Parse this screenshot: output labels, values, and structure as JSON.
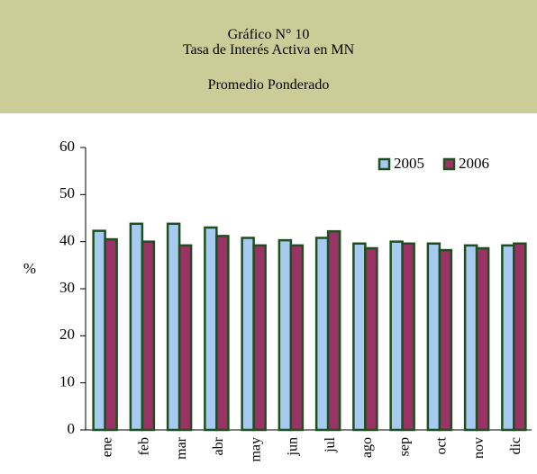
{
  "header": {
    "title": "Gráfico N° 10",
    "subtitle": "Tasa de Interés Activa en MN",
    "note": "Promedio Ponderado"
  },
  "chart_data": {
    "type": "bar",
    "y_label": "%",
    "categories": [
      "ene",
      "feb",
      "mar",
      "abr",
      "may",
      "jun",
      "jul",
      "ago",
      "sep",
      "oct",
      "nov",
      "dic"
    ],
    "series": [
      {
        "name": "2005",
        "color": "#a6caf0",
        "values": [
          42.3,
          43.8,
          43.8,
          43.0,
          40.8,
          40.3,
          40.8,
          39.6,
          40.0,
          39.6,
          39.2,
          39.2
        ]
      },
      {
        "name": "2006",
        "color": "#993366",
        "values": [
          40.5,
          40.0,
          39.2,
          41.2,
          39.2,
          39.2,
          42.2,
          38.6,
          39.6,
          38.2,
          38.6,
          39.6
        ]
      }
    ],
    "border_color": "#1f4f1f",
    "ylim": [
      0,
      60
    ],
    "yticks": [
      0,
      10,
      20,
      30,
      40,
      50,
      60
    ],
    "legend": "top-right"
  }
}
